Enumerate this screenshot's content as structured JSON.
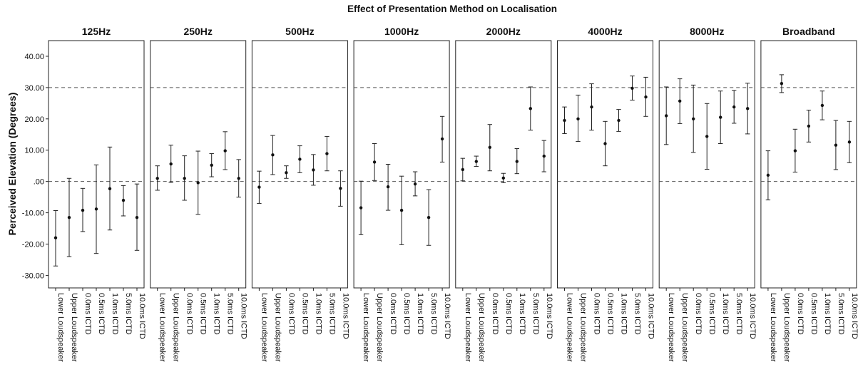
{
  "chart_data": {
    "type": "errorbar",
    "title": "Effect of Presentation Method on Localisation",
    "ylabel": "Perceived Elevation (Degrees)",
    "ylim": [
      -34,
      45
    ],
    "yticks": [
      40,
      30,
      20,
      10,
      0,
      -10,
      -20,
      -30
    ],
    "ytick_labels": [
      "40.00",
      "30.00",
      "20.00",
      "10.00",
      ".00",
      "-10.00",
      "-20.00",
      "-30.00"
    ],
    "reference_lines": [
      30,
      0
    ],
    "categories": [
      "Lower Loudspeaker",
      "Upper Loudspeaker",
      "0.0ms ICTD",
      "0.5ms ICTD",
      "1.0ms ICTD",
      "5.0ms ICTD",
      "10.0ms ICTD"
    ],
    "panels": [
      {
        "label": "125Hz",
        "mean": [
          -18,
          -11.5,
          -9.2,
          -8.8,
          -2.3,
          -6,
          -11.5
        ],
        "lower": [
          -27,
          -24,
          -16,
          -23,
          -15.5,
          -11,
          -22
        ],
        "upper": [
          -9.3,
          1,
          -2.2,
          5.3,
          11,
          -1.3,
          -0.8
        ]
      },
      {
        "label": "250Hz",
        "mean": [
          1,
          5.6,
          1,
          -0.4,
          5.2,
          9.8,
          1
        ],
        "lower": [
          -2.8,
          -0.3,
          -6,
          -10.5,
          1.5,
          3.8,
          -5
        ],
        "upper": [
          5,
          11.6,
          8.2,
          9.7,
          8.9,
          15.9,
          7
        ]
      },
      {
        "label": "500Hz",
        "mean": [
          -1.8,
          8.5,
          2.8,
          7.1,
          3.7,
          8.9,
          -2.2
        ],
        "lower": [
          -7,
          2.2,
          1,
          2.8,
          -1.2,
          3.4,
          -7.9
        ],
        "upper": [
          3.3,
          14.7,
          5,
          11.4,
          8.6,
          14.4,
          3.4
        ]
      },
      {
        "label": "1000Hz",
        "mean": [
          -8.4,
          6.2,
          -1.7,
          -9.2,
          -0.8,
          -11.5,
          13.6
        ],
        "lower": [
          -17,
          0.3,
          -9.2,
          -20.2,
          -4.6,
          -20.4,
          6.2
        ],
        "upper": [
          0.1,
          12.1,
          5.5,
          1.7,
          3.1,
          -2.6,
          20.8
        ]
      },
      {
        "label": "2000Hz",
        "mean": [
          3.8,
          6.4,
          10.9,
          1.1,
          6.4,
          23.3,
          8.1
        ],
        "lower": [
          0.2,
          4.8,
          3.4,
          -0.4,
          2.5,
          16.4,
          3.1
        ],
        "upper": [
          7.4,
          8.1,
          18.2,
          2.6,
          10.5,
          30.2,
          13.1
        ]
      },
      {
        "label": "4000Hz",
        "mean": [
          19.5,
          20,
          23.8,
          12.1,
          19.5,
          29.8,
          27
        ],
        "lower": [
          15.3,
          12.8,
          16.4,
          5,
          16,
          26,
          20.8
        ],
        "upper": [
          23.8,
          27.6,
          31.2,
          19.2,
          23,
          33.7,
          33.3
        ]
      },
      {
        "label": "8000Hz",
        "mean": [
          21,
          25.7,
          20,
          14.4,
          20.5,
          23.8,
          23.3
        ],
        "lower": [
          11.8,
          18.5,
          9.3,
          3.9,
          12.1,
          18.6,
          15.2
        ],
        "upper": [
          30.2,
          32.8,
          30.8,
          24.9,
          28.9,
          29.1,
          31.4
        ]
      },
      {
        "label": "Broadband",
        "mean": [
          2,
          31.3,
          9.8,
          17.7,
          24.3,
          11.6,
          12.6
        ],
        "lower": [
          -5.9,
          28.4,
          3,
          12.6,
          19.7,
          3.8,
          6
        ],
        "upper": [
          9.8,
          34.1,
          16.7,
          22.8,
          28.9,
          19.5,
          19.2
        ]
      }
    ]
  }
}
